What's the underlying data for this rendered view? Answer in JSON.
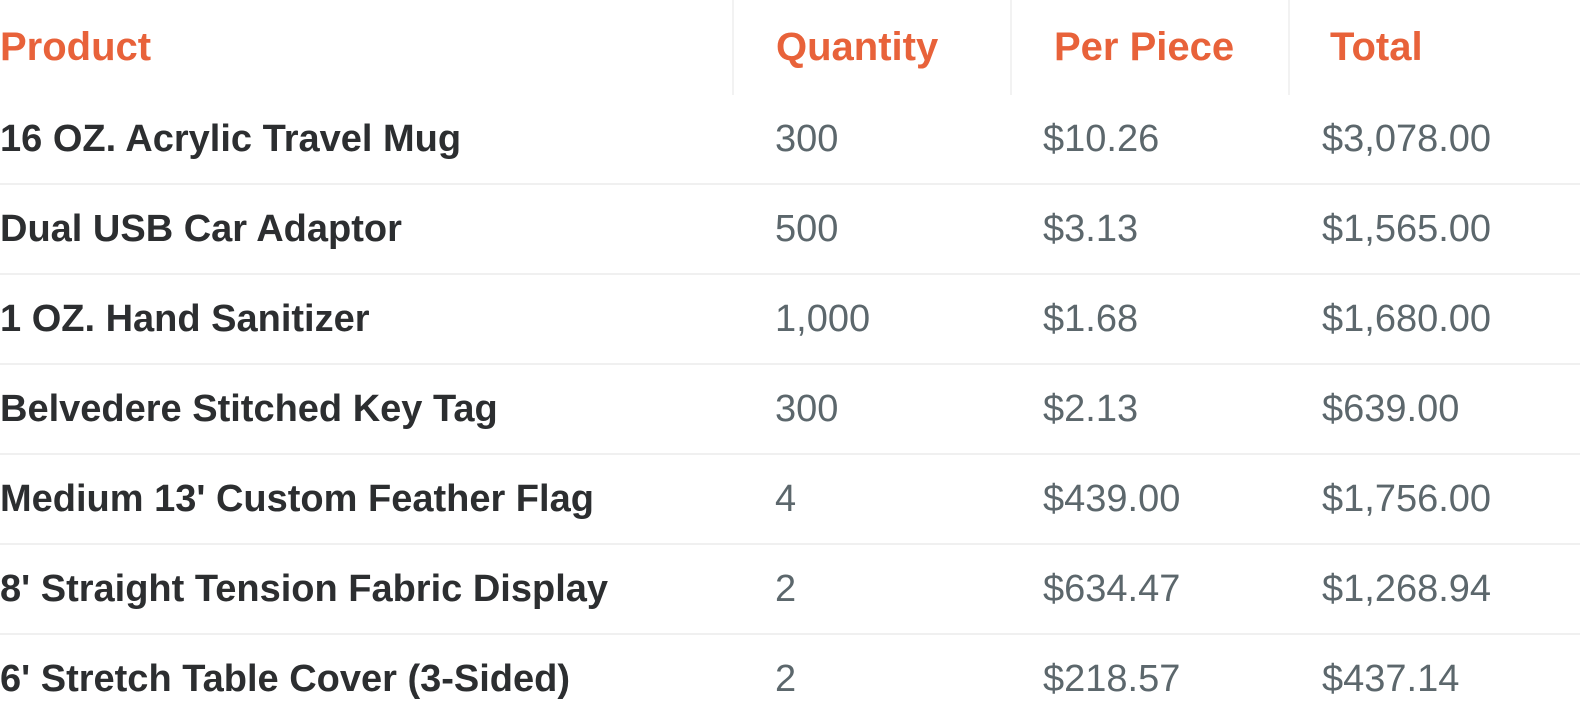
{
  "headers": {
    "product": "Product",
    "quantity": "Quantity",
    "per_piece": "Per Piece",
    "total": "Total"
  },
  "accent_color": "#e8623a",
  "rows": [
    {
      "product": "16 OZ. Acrylic Travel Mug",
      "quantity": "300",
      "per_piece": "$10.26",
      "total": "$3,078.00"
    },
    {
      "product": "Dual USB Car Adaptor",
      "quantity": "500",
      "per_piece": "$3.13",
      "total": "$1,565.00"
    },
    {
      "product": "1 OZ. Hand Sanitizer",
      "quantity": "1,000",
      "per_piece": "$1.68",
      "total": "$1,680.00"
    },
    {
      "product": "Belvedere Stitched Key Tag",
      "quantity": "300",
      "per_piece": "$2.13",
      "total": "$639.00"
    },
    {
      "product": "Medium 13' Custom Feather Flag",
      "quantity": "4",
      "per_piece": "$439.00",
      "total": "$1,756.00"
    },
    {
      "product": "8' Straight Tension Fabric Display",
      "quantity": "2",
      "per_piece": "$634.47",
      "total": "$1,268.94"
    },
    {
      "product": "6' Stretch Table Cover (3-Sided)",
      "quantity": "2",
      "per_piece": "$218.57",
      "total": "$437.14"
    }
  ]
}
